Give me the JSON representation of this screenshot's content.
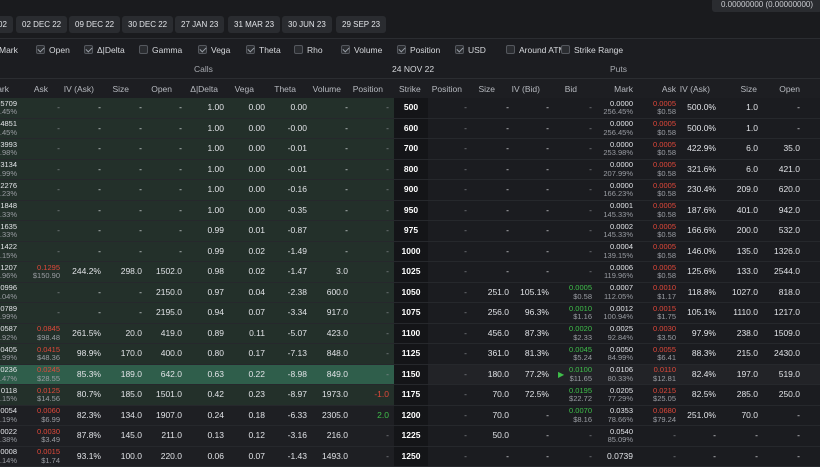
{
  "balance": "0.00000000 (0.00000000)",
  "dates": [
    "02",
    "02 DEC 22",
    "09 DEC 22",
    "30 DEC 22",
    "27 JAN 23",
    "31 MAR 23",
    "30 JUN 23",
    "29 SEP 23"
  ],
  "filters": [
    {
      "label": "Mark",
      "checked": true
    },
    {
      "label": "Open",
      "checked": true
    },
    {
      "label": "Δ|Delta",
      "checked": true
    },
    {
      "label": "Gamma",
      "checked": false
    },
    {
      "label": "Vega",
      "checked": true
    },
    {
      "label": "Theta",
      "checked": true
    },
    {
      "label": "Rho",
      "checked": false
    },
    {
      "label": "Volume",
      "checked": true
    },
    {
      "label": "Position",
      "checked": true
    },
    {
      "label": "USD",
      "checked": true
    },
    {
      "label": "Around ATM",
      "checked": false
    },
    {
      "label": "Strike Range",
      "checked": false
    }
  ],
  "section": {
    "calls": "Calls",
    "expiry": "24 NOV 22",
    "puts": "Puts"
  },
  "headers": {
    "calls": [
      "ark",
      "Ask",
      "IV (Ask)",
      "Size",
      "Open",
      "Δ|Delta",
      "Vega",
      "Theta",
      "Volume",
      "Position"
    ],
    "strike": "Strike",
    "puts": [
      "Position",
      "Size",
      "IV (Bid)",
      "Bid",
      "Mark",
      "Ask",
      "IV (Ask)",
      "Size",
      "Open"
    ]
  },
  "rows": [
    {
      "strike": "500",
      "cm1": "5709",
      "cm2": ".45%",
      "ca1": "-",
      "ca2": "",
      "civ": "-",
      "csz": "-",
      "cop": "-",
      "cd": "1.00",
      "cv": "0.00",
      "ct": "0.00",
      "cvol": "-",
      "cpos": "-",
      "cposc": "dim",
      "ppos": "-",
      "pbsz": "-",
      "pivb": "-",
      "pb1": "-",
      "pb2": "",
      "pm1": "0.0000",
      "pm2": "256.45%",
      "pa1": "0.0005",
      "pa2": "$0.58",
      "piva": "500.0%",
      "pasz": "1.0",
      "pop": "-",
      "hl": false
    },
    {
      "strike": "600",
      "cm1": "4851",
      "cm2": ".45%",
      "ca1": "-",
      "ca2": "",
      "civ": "-",
      "csz": "-",
      "cop": "-",
      "cd": "1.00",
      "cv": "0.00",
      "ct": "-0.00",
      "cvol": "-",
      "cpos": "-",
      "cposc": "dim",
      "ppos": "-",
      "pbsz": "-",
      "pivb": "-",
      "pb1": "-",
      "pb2": "",
      "pm1": "0.0000",
      "pm2": "256.45%",
      "pa1": "0.0005",
      "pa2": "$0.58",
      "piva": "500.0%",
      "pasz": "1.0",
      "pop": "-",
      "hl": false
    },
    {
      "strike": "700",
      "cm1": "3993",
      "cm2": ".98%",
      "ca1": "-",
      "ca2": "",
      "civ": "-",
      "csz": "-",
      "cop": "-",
      "cd": "1.00",
      "cv": "0.00",
      "ct": "-0.01",
      "cvol": "-",
      "cpos": "-",
      "cposc": "dim",
      "ppos": "-",
      "pbsz": "-",
      "pivb": "-",
      "pb1": "-",
      "pb2": "",
      "pm1": "0.0000",
      "pm2": "253.98%",
      "pa1": "0.0005",
      "pa2": "$0.58",
      "piva": "422.9%",
      "pasz": "6.0",
      "pop": "35.0",
      "hl": false
    },
    {
      "strike": "800",
      "cm1": "3134",
      "cm2": ".99%",
      "ca1": "-",
      "ca2": "",
      "civ": "-",
      "csz": "-",
      "cop": "-",
      "cd": "1.00",
      "cv": "0.00",
      "ct": "-0.01",
      "cvol": "-",
      "cpos": "-",
      "cposc": "dim",
      "ppos": "-",
      "pbsz": "-",
      "pivb": "-",
      "pb1": "-",
      "pb2": "",
      "pm1": "0.0000",
      "pm2": "207.99%",
      "pa1": "0.0005",
      "pa2": "$0.58",
      "piva": "321.6%",
      "pasz": "6.0",
      "pop": "421.0",
      "hl": false
    },
    {
      "strike": "900",
      "cm1": "2276",
      "cm2": ".23%",
      "ca1": "-",
      "ca2": "",
      "civ": "-",
      "csz": "-",
      "cop": "-",
      "cd": "1.00",
      "cv": "0.00",
      "ct": "-0.16",
      "cvol": "-",
      "cpos": "-",
      "cposc": "dim",
      "ppos": "-",
      "pbsz": "-",
      "pivb": "-",
      "pb1": "-",
      "pb2": "",
      "pm1": "0.0000",
      "pm2": "166.23%",
      "pa1": "0.0005",
      "pa2": "$0.58",
      "piva": "230.4%",
      "pasz": "209.0",
      "pop": "620.0",
      "hl": false
    },
    {
      "strike": "950",
      "cm1": "1848",
      "cm2": ".33%",
      "ca1": "-",
      "ca2": "",
      "civ": "-",
      "csz": "-",
      "cop": "-",
      "cd": "1.00",
      "cv": "0.00",
      "ct": "-0.35",
      "cvol": "-",
      "cpos": "-",
      "cposc": "dim",
      "ppos": "-",
      "pbsz": "-",
      "pivb": "-",
      "pb1": "-",
      "pb2": "",
      "pm1": "0.0001",
      "pm2": "145.33%",
      "pa1": "0.0005",
      "pa2": "$0.58",
      "piva": "187.6%",
      "pasz": "401.0",
      "pop": "942.0",
      "hl": false
    },
    {
      "strike": "975",
      "cm1": "1635",
      "cm2": ".33%",
      "ca1": "-",
      "ca2": "",
      "civ": "-",
      "csz": "-",
      "cop": "-",
      "cd": "0.99",
      "cv": "0.01",
      "ct": "-0.87",
      "cvol": "-",
      "cpos": "-",
      "cposc": "dim",
      "ppos": "-",
      "pbsz": "-",
      "pivb": "-",
      "pb1": "-",
      "pb2": "",
      "pm1": "0.0002",
      "pm2": "145.33%",
      "pa1": "0.0005",
      "pa2": "$0.58",
      "piva": "166.6%",
      "pasz": "200.0",
      "pop": "532.0",
      "hl": false
    },
    {
      "strike": "1000",
      "cm1": "1422",
      "cm2": ".15%",
      "ca1": "-",
      "ca2": "",
      "civ": "-",
      "csz": "-",
      "cop": "-",
      "cd": "0.99",
      "cv": "0.02",
      "ct": "-1.49",
      "cvol": "-",
      "cpos": "-",
      "cposc": "dim",
      "ppos": "-",
      "pbsz": "-",
      "pivb": "-",
      "pb1": "-",
      "pb2": "",
      "pm1": "0.0004",
      "pm2": "139.15%",
      "pa1": "0.0005",
      "pa2": "$0.58",
      "piva": "146.0%",
      "pasz": "135.0",
      "pop": "1326.0",
      "hl": false
    },
    {
      "strike": "1025",
      "cm1": "1207",
      "cm2": ".96%",
      "ca1": "0.1295",
      "ca2": "$150.90",
      "civ": "244.2%",
      "csz": "298.0",
      "cop": "1502.0",
      "cd": "0.98",
      "cv": "0.02",
      "ct": "-1.47",
      "cvol": "3.0",
      "cpos": "-",
      "cposc": "dim",
      "ppos": "-",
      "pbsz": "-",
      "pivb": "-",
      "pb1": "-",
      "pb2": "",
      "pm1": "0.0006",
      "pm2": "119.96%",
      "pa1": "0.0005",
      "pa2": "$0.58",
      "piva": "125.6%",
      "pasz": "133.0",
      "pop": "2544.0",
      "hl": false
    },
    {
      "strike": "1050",
      "cm1": "0996",
      "cm2": ".04%",
      "ca1": "-",
      "ca2": "",
      "civ": "-",
      "csz": "-",
      "cop": "2150.0",
      "cd": "0.97",
      "cv": "0.04",
      "ct": "-2.38",
      "cvol": "600.0",
      "cpos": "-",
      "cposc": "dim",
      "ppos": "-",
      "pbsz": "251.0",
      "pivb": "105.1%",
      "pb1": "0.0005",
      "pb2": "$0.58",
      "pm1": "0.0007",
      "pm2": "112.05%",
      "pa1": "0.0010",
      "pa2": "$1.17",
      "piva": "118.8%",
      "pasz": "1027.0",
      "pop": "818.0",
      "hl": false
    },
    {
      "strike": "1075",
      "cm1": "0789",
      "cm2": ".99%",
      "ca1": "-",
      "ca2": "",
      "civ": "-",
      "csz": "-",
      "cop": "2195.0",
      "cd": "0.94",
      "cv": "0.07",
      "ct": "-3.34",
      "cvol": "917.0",
      "cpos": "-",
      "cposc": "dim",
      "ppos": "-",
      "pbsz": "256.0",
      "pivb": "96.3%",
      "pb1": "0.0010",
      "pb2": "$1.16",
      "pm1": "0.0012",
      "pm2": "100.94%",
      "pa1": "0.0015",
      "pa2": "$1.75",
      "piva": "105.1%",
      "pasz": "1110.0",
      "pop": "1217.0",
      "hl": false
    },
    {
      "strike": "1100",
      "cm1": "0587",
      "cm2": ".92%",
      "ca1": "0.0845",
      "ca2": "$98.48",
      "civ": "261.5%",
      "csz": "20.0",
      "cop": "419.0",
      "cd": "0.89",
      "cv": "0.11",
      "ct": "-5.07",
      "cvol": "423.0",
      "cpos": "-",
      "cposc": "dim",
      "ppos": "-",
      "pbsz": "456.0",
      "pivb": "87.3%",
      "pb1": "0.0020",
      "pb2": "$2.33",
      "pm1": "0.0025",
      "pm2": "92.84%",
      "pa1": "0.0030",
      "pa2": "$3.50",
      "piva": "97.9%",
      "pasz": "238.0",
      "pop": "1509.0",
      "hl": false
    },
    {
      "strike": "1125",
      "cm1": "0405",
      "cm2": ".99%",
      "ca1": "0.0415",
      "ca2": "$48.36",
      "civ": "98.9%",
      "csz": "170.0",
      "cop": "400.0",
      "cd": "0.80",
      "cv": "0.17",
      "ct": "-7.13",
      "cvol": "848.0",
      "cpos": "-",
      "cposc": "dim",
      "ppos": "-",
      "pbsz": "361.0",
      "pivb": "81.3%",
      "pb1": "0.0045",
      "pb2": "$5.24",
      "pm1": "0.0050",
      "pm2": "84.99%",
      "pa1": "0.0055",
      "pa2": "$6.41",
      "piva": "88.3%",
      "pasz": "215.0",
      "pop": "2430.0",
      "hl": false
    },
    {
      "strike": "1150",
      "cm1": "0236",
      "cm2": ".47%",
      "ca1": "0.0245",
      "ca2": "$28.55",
      "civ": "85.3%",
      "csz": "189.0",
      "cop": "642.0",
      "cd": "0.63",
      "cv": "0.22",
      "ct": "-8.98",
      "cvol": "849.0",
      "cpos": "-",
      "cposc": "dim",
      "ppos": "-",
      "pbsz": "180.0",
      "pivb": "77.2%",
      "pb1": "0.0100",
      "pb2": "$11.65",
      "pm1": "0.0106",
      "pm2": "80.33%",
      "pa1": "0.0110",
      "pa2": "$12.81",
      "piva": "82.4%",
      "pasz": "197.0",
      "pop": "519.0",
      "hl": true
    },
    {
      "strike": "1175",
      "cm1": "0118",
      "cm2": ".15%",
      "ca1": "0.0125",
      "ca2": "$14.56",
      "civ": "80.7%",
      "csz": "185.0",
      "cop": "1501.0",
      "cd": "0.42",
      "cv": "0.23",
      "ct": "-8.97",
      "cvol": "1973.0",
      "cpos": "-1.0",
      "cposc": "red",
      "ppos": "-",
      "pbsz": "70.0",
      "pivb": "72.5%",
      "pb1": "0.0195",
      "pb2": "$22.72",
      "pm1": "0.0205",
      "pm2": "77.29%",
      "pa1": "0.0215",
      "pa2": "$25.05",
      "piva": "82.5%",
      "pasz": "285.0",
      "pop": "250.0",
      "hl": false
    },
    {
      "strike": "1200",
      "cm1": "0054",
      "cm2": ".19%",
      "ca1": "0.0060",
      "ca2": "$6.99",
      "civ": "82.3%",
      "csz": "134.0",
      "cop": "1907.0",
      "cd": "0.24",
      "cv": "0.18",
      "ct": "-6.33",
      "cvol": "2305.0",
      "cpos": "2.0",
      "cposc": "green",
      "ppos": "-",
      "pbsz": "70.0",
      "pivb": "-",
      "pb1": "0.0070",
      "pb2": "$8.16",
      "pm1": "0.0353",
      "pm2": "78.66%",
      "pa1": "0.0680",
      "pa2": "$79.24",
      "piva": "251.0%",
      "pasz": "70.0",
      "pop": "-",
      "hl": false
    },
    {
      "strike": "1225",
      "cm1": "0022",
      "cm2": ".38%",
      "ca1": "0.0030",
      "ca2": "$3.49",
      "civ": "87.8%",
      "csz": "145.0",
      "cop": "211.0",
      "cd": "0.13",
      "cv": "0.12",
      "ct": "-3.16",
      "cvol": "216.0",
      "cpos": "-",
      "cposc": "dim",
      "ppos": "-",
      "pbsz": "50.0",
      "pivb": "-",
      "pb1": "-",
      "pb2": "",
      "pm1": "0.0540",
      "pm2": "85.09%",
      "pa1": "-",
      "pa2": "",
      "piva": "-",
      "pasz": "-",
      "pop": "-",
      "hl": false
    },
    {
      "strike": "1250",
      "cm1": "0008",
      "cm2": ".14%",
      "ca1": "0.0015",
      "ca2": "$1.74",
      "civ": "93.1%",
      "csz": "100.0",
      "cop": "220.0",
      "cd": "0.06",
      "cv": "0.07",
      "ct": "-1.43",
      "cvol": "1493.0",
      "cpos": "-",
      "cposc": "dim",
      "ppos": "-",
      "pbsz": "-",
      "pivb": "-",
      "pb1": "-",
      "pb2": "",
      "pm1": "0.0739",
      "pm2": "",
      "pa1": "-",
      "pa2": "",
      "piva": "-",
      "pasz": "-",
      "pop": "-",
      "hl": false
    }
  ]
}
